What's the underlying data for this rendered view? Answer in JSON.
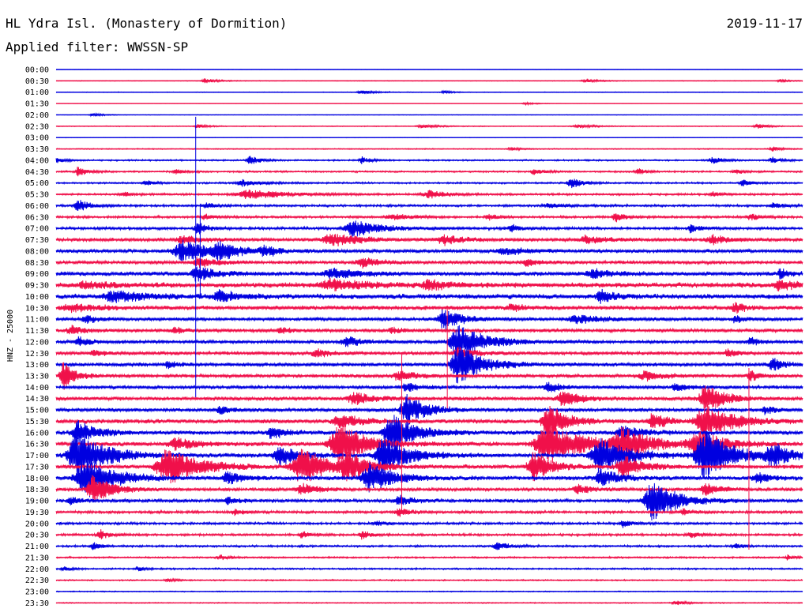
{
  "header": {
    "title": "HL Ydra Isl. (Monastery of Dormition)",
    "filter": "Applied filter: WWSSN-SP",
    "date": "2019-11-17"
  },
  "colors": {
    "blue": "#0000e0",
    "red": "#f0104a"
  },
  "chart_data": {
    "type": "line",
    "title": "HL Ydra Isl. (Monastery of Dormition)",
    "subtitle": "Applied filter: WWSSN-SP",
    "date": "2019-11-17",
    "ylabel": "HNZ - 25000",
    "xlabel": "",
    "grid": false,
    "trace_colors": [
      "blue",
      "red"
    ],
    "traces": [
      {
        "label": "00:00",
        "noise": 0.2,
        "events": []
      },
      {
        "label": "00:30",
        "noise": 0.4,
        "events": [
          [
            0.2,
            3,
            0.012
          ],
          [
            0.71,
            2.5,
            0.012
          ],
          [
            0.97,
            2,
            0.01
          ]
        ]
      },
      {
        "label": "01:00",
        "noise": 0.4,
        "events": [
          [
            0.41,
            3,
            0.014
          ],
          [
            0.52,
            2,
            0.01
          ]
        ]
      },
      {
        "label": "01:30",
        "noise": 0.2,
        "events": [
          [
            0.63,
            1.5,
            0.012
          ]
        ]
      },
      {
        "label": "02:00",
        "noise": 0.3,
        "events": [
          [
            0.05,
            2,
            0.012
          ]
        ]
      },
      {
        "label": "02:30",
        "noise": 0.5,
        "events": [
          [
            0.19,
            3,
            0.01
          ],
          [
            0.49,
            2.5,
            0.015
          ],
          [
            0.7,
            2,
            0.02
          ],
          [
            0.94,
            3,
            0.012
          ]
        ]
      },
      {
        "label": "03:00",
        "noise": 0.3,
        "events": []
      },
      {
        "label": "03:30",
        "noise": 0.6,
        "events": [
          [
            0.61,
            2,
            0.01
          ],
          [
            0.96,
            3,
            0.01
          ]
        ]
      },
      {
        "label": "04:00",
        "noise": 0.9,
        "events": [
          [
            0.0,
            4,
            0.008
          ],
          [
            0.26,
            6,
            0.01
          ],
          [
            0.41,
            4,
            0.01
          ],
          [
            0.88,
            4,
            0.012
          ],
          [
            0.96,
            4,
            0.01
          ]
        ]
      },
      {
        "label": "04:30",
        "noise": 1.0,
        "events": [
          [
            0.03,
            6,
            0.01
          ],
          [
            0.16,
            3,
            0.01
          ],
          [
            0.64,
            4,
            0.01
          ],
          [
            0.78,
            4,
            0.01
          ],
          [
            0.91,
            3,
            0.01
          ]
        ]
      },
      {
        "label": "05:00",
        "noise": 1.0,
        "events": [
          [
            0.12,
            3,
            0.01
          ],
          [
            0.25,
            4,
            0.02
          ],
          [
            0.69,
            7,
            0.012
          ],
          [
            0.92,
            4,
            0.01
          ]
        ]
      },
      {
        "label": "05:30",
        "noise": 1.2,
        "events": [
          [
            0.09,
            3,
            0.01
          ],
          [
            0.26,
            6,
            0.04
          ],
          [
            0.5,
            5,
            0.02
          ],
          [
            0.88,
            3,
            0.01
          ]
        ]
      },
      {
        "label": "06:00",
        "noise": 1.3,
        "events": [
          [
            0.03,
            8,
            0.012
          ],
          [
            0.2,
            4,
            0.01
          ],
          [
            0.66,
            3,
            0.02
          ],
          [
            0.96,
            4,
            0.01
          ]
        ]
      },
      {
        "label": "06:30",
        "noise": 1.4,
        "events": [
          [
            0.2,
            4,
            0.01
          ],
          [
            0.45,
            4,
            0.02
          ],
          [
            0.58,
            4,
            0.01
          ],
          [
            0.75,
            7,
            0.01
          ],
          [
            0.93,
            4,
            0.01
          ]
        ]
      },
      {
        "label": "07:00",
        "noise": 1.6,
        "events": [
          [
            0.19,
            8,
            0.01
          ],
          [
            0.4,
            10,
            0.03
          ],
          [
            0.61,
            5,
            0.01
          ],
          [
            0.85,
            5,
            0.01
          ]
        ]
      },
      {
        "label": "07:30",
        "noise": 2.0,
        "events": [
          [
            0.17,
            5,
            0.02
          ],
          [
            0.37,
            8,
            0.03
          ],
          [
            0.52,
            6,
            0.02
          ],
          [
            0.71,
            5,
            0.02
          ],
          [
            0.88,
            5,
            0.02
          ]
        ]
      },
      {
        "label": "08:00",
        "noise": 2.2,
        "events": [
          [
            0.17,
            12,
            0.03
          ],
          [
            0.22,
            10,
            0.02
          ],
          [
            0.28,
            6,
            0.015
          ],
          [
            0.6,
            5,
            0.02
          ]
        ]
      },
      {
        "label": "08:30",
        "noise": 2.0,
        "events": [
          [
            0.19,
            6,
            0.02
          ],
          [
            0.41,
            6,
            0.02
          ],
          [
            0.63,
            5,
            0.01
          ]
        ]
      },
      {
        "label": "09:00",
        "noise": 2.5,
        "events": [
          [
            0.19,
            9,
            0.02
          ],
          [
            0.37,
            6,
            0.03
          ],
          [
            0.72,
            6,
            0.02
          ],
          [
            0.97,
            6,
            0.01
          ]
        ]
      },
      {
        "label": "09:30",
        "noise": 3.0,
        "events": [
          [
            0.04,
            4,
            0.03
          ],
          [
            0.37,
            6,
            0.04
          ],
          [
            0.5,
            6,
            0.02
          ],
          [
            0.97,
            6,
            0.02
          ]
        ]
      },
      {
        "label": "10:00",
        "noise": 3.0,
        "events": [
          [
            0.08,
            6,
            0.04
          ],
          [
            0.22,
            6,
            0.02
          ],
          [
            0.73,
            8,
            0.015
          ]
        ]
      },
      {
        "label": "10:30",
        "noise": 2.5,
        "events": [
          [
            0.02,
            5,
            0.03
          ],
          [
            0.61,
            3,
            0.02
          ],
          [
            0.91,
            7,
            0.01
          ]
        ]
      },
      {
        "label": "11:00",
        "noise": 2.0,
        "events": [
          [
            0.04,
            6,
            0.01
          ],
          [
            0.52,
            12,
            0.02
          ],
          [
            0.7,
            5,
            0.03
          ],
          [
            0.91,
            5,
            0.01
          ]
        ]
      },
      {
        "label": "11:30",
        "noise": 2.0,
        "events": [
          [
            0.02,
            6,
            0.012
          ],
          [
            0.16,
            4,
            0.01
          ],
          [
            0.3,
            4,
            0.01
          ],
          [
            0.45,
            4,
            0.01
          ]
        ]
      },
      {
        "label": "12:00",
        "noise": 2.0,
        "events": [
          [
            0.03,
            6,
            0.012
          ],
          [
            0.39,
            6,
            0.02
          ],
          [
            0.54,
            20,
            0.03
          ],
          [
            0.93,
            5,
            0.01
          ]
        ]
      },
      {
        "label": "12:30",
        "noise": 2.0,
        "events": [
          [
            0.05,
            4,
            0.01
          ],
          [
            0.35,
            4,
            0.02
          ],
          [
            0.54,
            6,
            0.02
          ],
          [
            0.9,
            5,
            0.01
          ]
        ]
      },
      {
        "label": "13:00",
        "noise": 2.2,
        "events": [
          [
            0.15,
            4,
            0.01
          ],
          [
            0.54,
            25,
            0.025
          ],
          [
            0.96,
            8,
            0.012
          ]
        ]
      },
      {
        "label": "13:30",
        "noise": 2.0,
        "events": [
          [
            0.01,
            18,
            0.012
          ],
          [
            0.46,
            6,
            0.02
          ],
          [
            0.79,
            6,
            0.02
          ],
          [
            0.93,
            6,
            0.01
          ]
        ]
      },
      {
        "label": "14:00",
        "noise": 2.0,
        "events": [
          [
            0.47,
            6,
            0.015
          ],
          [
            0.66,
            6,
            0.015
          ],
          [
            0.83,
            5,
            0.012
          ]
        ]
      },
      {
        "label": "14:30",
        "noise": 2.2,
        "events": [
          [
            0.4,
            8,
            0.02
          ],
          [
            0.68,
            10,
            0.02
          ],
          [
            0.87,
            18,
            0.02
          ]
        ]
      },
      {
        "label": "15:00",
        "noise": 2.2,
        "events": [
          [
            0.22,
            5,
            0.012
          ],
          [
            0.47,
            20,
            0.02
          ],
          [
            0.95,
            5,
            0.01
          ]
        ]
      },
      {
        "label": "15:30",
        "noise": 2.5,
        "events": [
          [
            0.38,
            10,
            0.02
          ],
          [
            0.66,
            20,
            0.02
          ],
          [
            0.8,
            10,
            0.015
          ],
          [
            0.87,
            22,
            0.03
          ]
        ]
      },
      {
        "label": "16:00",
        "noise": 2.5,
        "events": [
          [
            0.03,
            14,
            0.02
          ],
          [
            0.29,
            8,
            0.015
          ],
          [
            0.45,
            24,
            0.025
          ],
          [
            0.76,
            8,
            0.02
          ]
        ]
      },
      {
        "label": "16:30",
        "noise": 2.5,
        "events": [
          [
            0.16,
            8,
            0.02
          ],
          [
            0.38,
            26,
            0.03
          ],
          [
            0.66,
            25,
            0.04
          ],
          [
            0.76,
            18,
            0.03
          ],
          [
            0.86,
            14,
            0.03
          ]
        ]
      },
      {
        "label": "17:00",
        "noise": 2.5,
        "events": [
          [
            0.03,
            30,
            0.03
          ],
          [
            0.3,
            12,
            0.02
          ],
          [
            0.44,
            26,
            0.025
          ],
          [
            0.73,
            22,
            0.03
          ],
          [
            0.87,
            30,
            0.03
          ],
          [
            0.96,
            14,
            0.02
          ]
        ]
      },
      {
        "label": "17:30",
        "noise": 2.5,
        "events": [
          [
            0.15,
            22,
            0.035
          ],
          [
            0.33,
            22,
            0.03
          ],
          [
            0.39,
            16,
            0.02
          ],
          [
            0.64,
            18,
            0.02
          ],
          [
            0.76,
            14,
            0.02
          ]
        ]
      },
      {
        "label": "18:00",
        "noise": 2.5,
        "events": [
          [
            0.04,
            26,
            0.03
          ],
          [
            0.23,
            8,
            0.015
          ],
          [
            0.42,
            18,
            0.025
          ],
          [
            0.73,
            10,
            0.02
          ],
          [
            0.94,
            6,
            0.015
          ]
        ]
      },
      {
        "label": "18:30",
        "noise": 2.0,
        "events": [
          [
            0.05,
            18,
            0.02
          ],
          [
            0.33,
            8,
            0.015
          ],
          [
            0.7,
            6,
            0.015
          ],
          [
            0.87,
            8,
            0.015
          ]
        ]
      },
      {
        "label": "19:00",
        "noise": 2.0,
        "events": [
          [
            0.02,
            5,
            0.01
          ],
          [
            0.23,
            5,
            0.01
          ],
          [
            0.46,
            6,
            0.015
          ],
          [
            0.8,
            28,
            0.025
          ]
        ]
      },
      {
        "label": "19:30",
        "noise": 1.6,
        "events": [
          [
            0.24,
            4,
            0.01
          ],
          [
            0.46,
            5,
            0.012
          ],
          [
            0.84,
            4,
            0.01
          ]
        ]
      },
      {
        "label": "20:00",
        "noise": 1.4,
        "events": [
          [
            0.43,
            3,
            0.01
          ],
          [
            0.76,
            5,
            0.01
          ]
        ]
      },
      {
        "label": "20:30",
        "noise": 1.4,
        "events": [
          [
            0.06,
            6,
            0.01
          ],
          [
            0.33,
            4,
            0.01
          ],
          [
            0.41,
            5,
            0.01
          ],
          [
            0.85,
            4,
            0.01
          ]
        ]
      },
      {
        "label": "21:00",
        "noise": 1.2,
        "events": [
          [
            0.05,
            6,
            0.008
          ],
          [
            0.59,
            6,
            0.012
          ],
          [
            0.91,
            3,
            0.01
          ]
        ]
      },
      {
        "label": "21:30",
        "noise": 1.0,
        "events": [
          [
            0.22,
            3,
            0.01
          ],
          [
            0.98,
            3,
            0.008
          ]
        ]
      },
      {
        "label": "22:00",
        "noise": 1.0,
        "events": [
          [
            0.01,
            3,
            0.008
          ],
          [
            0.11,
            3,
            0.008
          ]
        ]
      },
      {
        "label": "22:30",
        "noise": 0.8,
        "events": [
          [
            0.15,
            2,
            0.01
          ]
        ]
      },
      {
        "label": "23:00",
        "noise": 0.6,
        "events": []
      },
      {
        "label": "23:30",
        "noise": 0.6,
        "events": [
          [
            0.83,
            3,
            0.012
          ]
        ]
      }
    ],
    "spikes": [
      {
        "trace": "08:00",
        "x": 0.187,
        "up": 170,
        "down": 185
      },
      {
        "trace": "08:00",
        "x": 0.193,
        "up": 60,
        "down": 60
      },
      {
        "trace": "13:30",
        "x": 0.463,
        "up": 30,
        "down": 170
      },
      {
        "trace": "12:30",
        "x": 0.524,
        "up": 60,
        "down": 70
      },
      {
        "trace": "13:30",
        "x": 0.928,
        "up": 10,
        "down": 220
      }
    ]
  }
}
